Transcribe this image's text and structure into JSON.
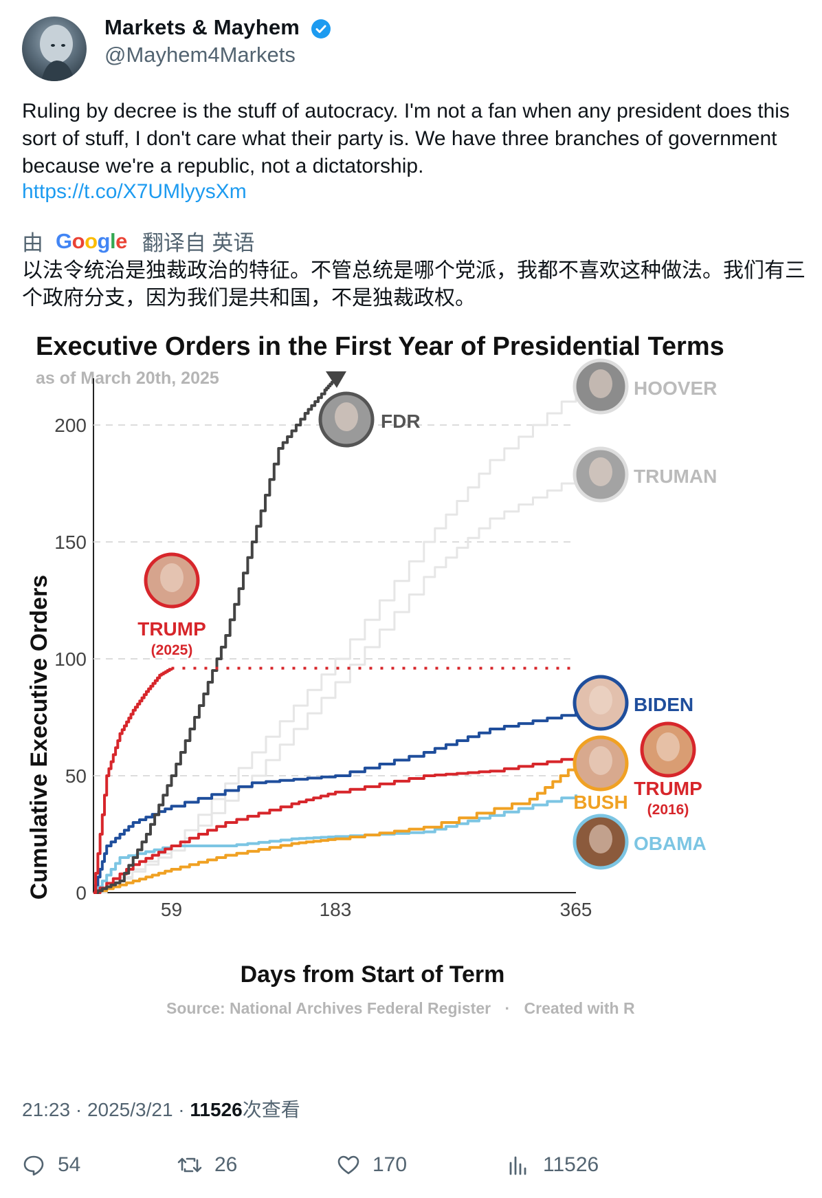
{
  "author": {
    "display_name": "Markets & Mayhem",
    "handle": "@Mayhem4Markets",
    "verified_icon": "verified-badge-icon",
    "avatar_icon": "robot-avatar"
  },
  "tweet": {
    "text": "Ruling by decree is the stuff of autocracy. I'm not a fan when any president does this sort of stuff, I don't care what their party is. We have three branches of government because we're a republic, not a dictatorship.",
    "link": "https://t.co/X7UMlyysXm",
    "translate_prefix": "由",
    "translate_brand": "Google",
    "translate_suffix": "翻译自 英语",
    "translated_text": "以法令统治是独裁政治的特征。不管总统是哪个党派，我都不喜欢这种做法。我们有三个政府分支，因为我们是共和国，不是独裁政权。"
  },
  "chart_data": {
    "type": "line",
    "title": "Executive Orders in the First Year of Presidential Terms",
    "subtitle": "as of March 20th, 2025",
    "xlabel": "Days from Start of Term",
    "ylabel": "Cumulative Executive Orders",
    "x_ticks": [
      59,
      183,
      365
    ],
    "y_ticks": [
      0,
      50,
      100,
      150,
      200
    ],
    "xlim": [
      0,
      365
    ],
    "ylim": [
      0,
      220
    ],
    "grid": "horizontal dashed",
    "series": [
      {
        "name": "FDR",
        "color": "#444444",
        "x": [
          0,
          20,
          40,
          59,
          80,
          100,
          120,
          140,
          160,
          175,
          183
        ],
        "y": [
          0,
          5,
          25,
          50,
          80,
          110,
          150,
          190,
          205,
          215,
          220
        ]
      },
      {
        "name": "HOOVER",
        "color": "#e6e6e6",
        "x": [
          0,
          59,
          120,
          183,
          250,
          300,
          365
        ],
        "y": [
          0,
          20,
          60,
          100,
          150,
          185,
          215
        ]
      },
      {
        "name": "TRUMAN",
        "color": "#e6e6e6",
        "x": [
          0,
          59,
          120,
          183,
          250,
          300,
          365
        ],
        "y": [
          0,
          18,
          50,
          90,
          135,
          160,
          178
        ]
      },
      {
        "name": "TRUMP (2025)",
        "color": "#d7262b",
        "x": [
          0,
          10,
          20,
          30,
          40,
          50,
          59
        ],
        "y": [
          0,
          50,
          68,
          78,
          86,
          93,
          96
        ]
      },
      {
        "name": "BIDEN",
        "color": "#1f4e9c",
        "x": [
          0,
          10,
          30,
          59,
          120,
          183,
          250,
          300,
          365
        ],
        "y": [
          0,
          20,
          30,
          37,
          47,
          50,
          60,
          70,
          77
        ]
      },
      {
        "name": "TRUMP (2016)",
        "color": "#d7262b",
        "x": [
          0,
          30,
          59,
          100,
          150,
          183,
          250,
          300,
          365
        ],
        "y": [
          0,
          12,
          20,
          30,
          38,
          43,
          50,
          52,
          58
        ]
      },
      {
        "name": "BUSH",
        "color": "#f0a123",
        "x": [
          0,
          30,
          59,
          100,
          150,
          183,
          250,
          330,
          365
        ],
        "y": [
          0,
          5,
          10,
          16,
          21,
          23,
          28,
          40,
          55
        ]
      },
      {
        "name": "OBAMA",
        "color": "#7cc5e3",
        "x": [
          0,
          20,
          59,
          100,
          150,
          183,
          250,
          300,
          365
        ],
        "y": [
          0,
          15,
          20,
          20,
          23,
          24,
          26,
          33,
          42
        ]
      }
    ],
    "trump2025_projection": {
      "value": 96,
      "style": "dotted"
    },
    "labels": [
      "FDR",
      "HOOVER",
      "TRUMAN",
      "TRUMP",
      "(2025)",
      "BIDEN",
      "BUSH",
      "TRUMP",
      "(2016)",
      "OBAMA"
    ],
    "source": "Source: National Archives Federal Register",
    "credit": "Created with R"
  },
  "timestamp": {
    "time": "21:23 · 2025/3/21 · ",
    "views": "11526",
    "views_suffix": "次查看"
  },
  "actions": {
    "replies": "54",
    "reposts": "26",
    "likes": "170",
    "views": "11526"
  }
}
